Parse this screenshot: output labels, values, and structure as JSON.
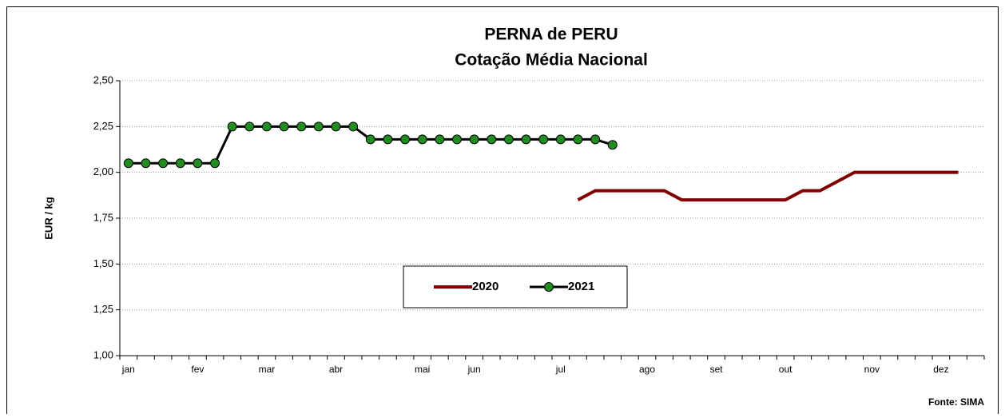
{
  "chart_data": {
    "type": "line",
    "title": "PERNA de PERU",
    "subtitle": "Cotação Média Nacional",
    "y_label": "EUR / kg",
    "source": "Fonte: SIMA",
    "categories": [
      "jan",
      null,
      null,
      null,
      "fev",
      null,
      null,
      null,
      "mar",
      null,
      null,
      null,
      "abr",
      null,
      null,
      null,
      null,
      "mai",
      null,
      null,
      "jun",
      null,
      null,
      null,
      null,
      "jul",
      null,
      null,
      null,
      null,
      "ago",
      null,
      null,
      null,
      "set",
      null,
      null,
      null,
      "out",
      null,
      null,
      null,
      null,
      "nov",
      null,
      null,
      null,
      "dez",
      null,
      null
    ],
    "series": [
      {
        "name": "2020",
        "color": "#800000",
        "marker": false,
        "values": [
          null,
          null,
          null,
          null,
          null,
          null,
          null,
          null,
          null,
          null,
          null,
          null,
          null,
          null,
          null,
          null,
          null,
          null,
          null,
          null,
          null,
          null,
          null,
          null,
          null,
          null,
          1.85,
          1.9,
          1.9,
          1.9,
          1.9,
          1.9,
          1.85,
          1.85,
          1.85,
          1.85,
          1.85,
          1.85,
          1.85,
          1.9,
          1.9,
          1.95,
          2.0,
          2.0,
          2.0,
          2.0,
          2.0,
          2.0,
          2.0,
          null
        ]
      },
      {
        "name": "2021",
        "color": "#000000",
        "marker": true,
        "marker_color": "#228b22",
        "values": [
          2.05,
          2.05,
          2.05,
          2.05,
          2.05,
          2.05,
          2.25,
          2.25,
          2.25,
          2.25,
          2.25,
          2.25,
          2.25,
          2.25,
          2.18,
          2.18,
          2.18,
          2.18,
          2.18,
          2.18,
          2.18,
          2.18,
          2.18,
          2.18,
          2.18,
          2.18,
          2.18,
          2.18,
          2.15,
          null,
          null,
          null,
          null,
          null,
          null,
          null,
          null,
          null,
          null,
          null,
          null,
          null,
          null,
          null,
          null,
          null,
          null,
          null,
          null,
          null
        ]
      }
    ],
    "ylim": [
      1.0,
      2.5
    ],
    "yticks": [
      {
        "value": 1.0,
        "label": "1,00"
      },
      {
        "value": 1.25,
        "label": "1,25"
      },
      {
        "value": 1.5,
        "label": "1,50"
      },
      {
        "value": 1.75,
        "label": "1,75"
      },
      {
        "value": 2.0,
        "label": "2,00"
      },
      {
        "value": 2.25,
        "label": "2,25"
      },
      {
        "value": 2.5,
        "label": "2,50"
      }
    ],
    "grid": true,
    "legend": "center"
  }
}
